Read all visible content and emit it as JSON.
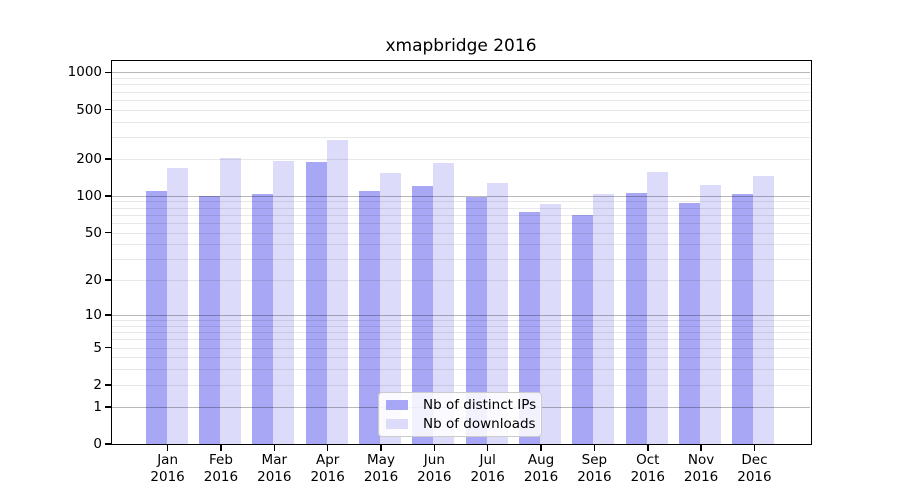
{
  "chart_data": {
    "type": "bar",
    "title": "xmapbridge 2016",
    "xlabel": "",
    "ylabel": "",
    "categories": [
      "Jan",
      "Feb",
      "Mar",
      "Apr",
      "May",
      "Jun",
      "Jul",
      "Aug",
      "Sep",
      "Oct",
      "Nov",
      "Dec"
    ],
    "category_year": "2016",
    "series": [
      {
        "name": "Nb of distinct IPs",
        "color": "#a7a7f5",
        "values": [
          110,
          100,
          104,
          188,
          110,
          119,
          98,
          74,
          69,
          105,
          88,
          104
        ]
      },
      {
        "name": "Nb of downloads",
        "color": "#dcdcfa",
        "values": [
          167,
          201,
          191,
          283,
          152,
          183,
          128,
          86,
          104,
          157,
          123,
          145
        ]
      }
    ],
    "y_scale": "log10(value+1)",
    "y_ticks": [
      0,
      1,
      2,
      5,
      10,
      20,
      50,
      100,
      200,
      500,
      1000
    ],
    "y_tick_labels": [
      "0",
      "1",
      "2",
      "5",
      "10",
      "20",
      "50",
      "100",
      "200",
      "500",
      "1000"
    ],
    "ylim": [
      0,
      1230
    ],
    "grid": "horizontal major (decades, darker) + minor (2-9 per decade, light)",
    "legend_position": "inside bottom-center"
  }
}
